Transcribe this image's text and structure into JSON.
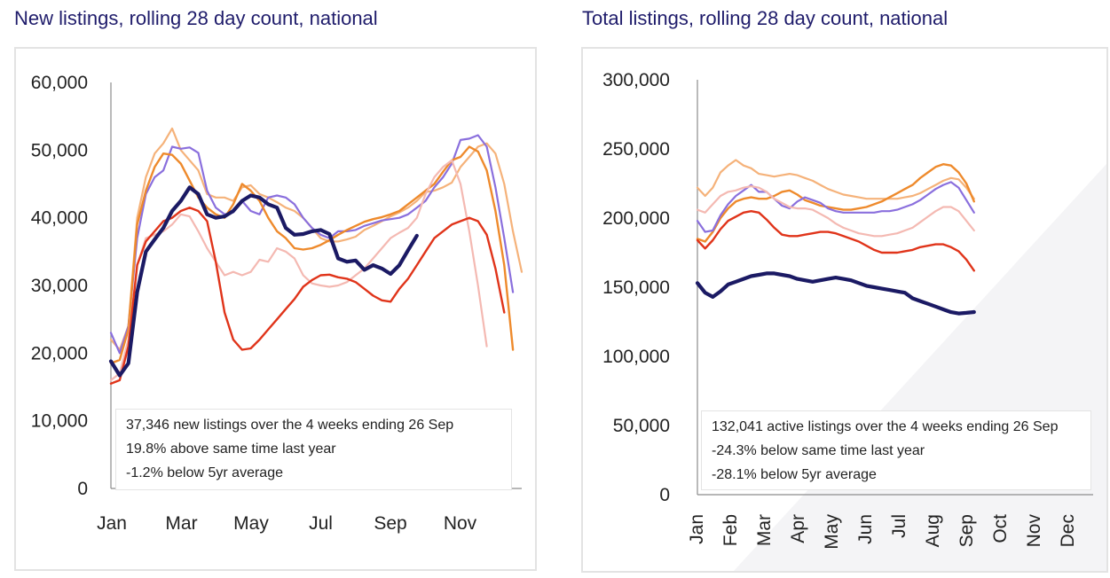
{
  "chart_data": [
    {
      "type": "line",
      "title": "New listings, rolling 28 day count, national",
      "ylim": [
        0,
        60000
      ],
      "yticks": [
        0,
        10000,
        20000,
        30000,
        40000,
        50000,
        60000
      ],
      "ytick_labels": [
        "0",
        "10,000",
        "20,000",
        "30,000",
        "40,000",
        "50,000",
        "60,000"
      ],
      "xticks": [
        0,
        8,
        16,
        24,
        32,
        40
      ],
      "xtick_labels": [
        "Jan",
        "Mar",
        "May",
        "Jul",
        "Sep",
        "Nov"
      ],
      "x_max": 47,
      "annotation": [
        "37,346 new listings over the 4 weeks ending 26 Sep",
        "19.8% above same time last year",
        "-1.2% below 5yr average"
      ],
      "series": [
        {
          "name": "series-light-orange",
          "color": "#f5b27a",
          "width": 2.2,
          "values": [
            22000,
            20500,
            24000,
            40000,
            46000,
            49500,
            51000,
            53200,
            50000,
            48500,
            47000,
            43500,
            43000,
            43000,
            42500,
            44500,
            44800,
            43500,
            43000,
            42300,
            41500,
            41000,
            40000,
            38500,
            37000,
            36500,
            36500,
            36800,
            37200,
            38200,
            38800,
            39500,
            40200,
            40800,
            41500,
            42500,
            43800,
            44000,
            44500,
            45200,
            47500,
            49000,
            50500,
            51000,
            49500,
            45000,
            38000,
            32000
          ]
        },
        {
          "name": "series-purple",
          "color": "#8a6fdd",
          "width": 2.2,
          "values": [
            23000,
            20000,
            24000,
            37000,
            43500,
            46000,
            47000,
            50500,
            50200,
            50400,
            49600,
            44000,
            41500,
            40500,
            40800,
            42500,
            41000,
            40500,
            43000,
            43300,
            43000,
            42000,
            40000,
            38500,
            37500,
            37000,
            38000,
            38000,
            38200,
            38800,
            39200,
            39600,
            39800,
            40000,
            40500,
            41500,
            42500,
            44500,
            46000,
            48000,
            51500,
            51700,
            52200,
            50500,
            44500,
            37000,
            29000
          ]
        },
        {
          "name": "series-orange",
          "color": "#ee8a2c",
          "width": 2.4,
          "values": [
            18500,
            19000,
            23500,
            39000,
            44000,
            47500,
            49500,
            49300,
            48000,
            45500,
            43000,
            41500,
            40500,
            40000,
            42000,
            45000,
            44000,
            42500,
            40000,
            38000,
            37000,
            35500,
            35300,
            35500,
            36000,
            36700,
            37500,
            38200,
            38800,
            39400,
            39800,
            40100,
            40500,
            41000,
            42000,
            43000,
            44000,
            45000,
            46800,
            48500,
            49000,
            50500,
            49800,
            47000,
            41000,
            33000,
            20500
          ]
        },
        {
          "name": "series-pink",
          "color": "#f4b9b2",
          "width": 2.2,
          "values": [
            16000,
            17000,
            22000,
            33000,
            37000,
            37500,
            38000,
            39000,
            40500,
            40200,
            38000,
            35500,
            33500,
            31500,
            32000,
            31500,
            32000,
            33800,
            33500,
            35500,
            35000,
            34000,
            31500,
            30300,
            30000,
            29800,
            30000,
            30500,
            31500,
            32500,
            34000,
            35500,
            37000,
            37800,
            38500,
            40000,
            43500,
            46000,
            47500,
            48500,
            45000,
            38000,
            30000,
            21000
          ]
        },
        {
          "name": "series-red",
          "color": "#e0341a",
          "width": 2.4,
          "values": [
            15500,
            16000,
            21000,
            33000,
            36500,
            38000,
            39500,
            40000,
            41000,
            41500,
            41000,
            39500,
            33500,
            26000,
            22000,
            20500,
            20700,
            22000,
            23500,
            25000,
            26500,
            28000,
            29800,
            30800,
            31500,
            31600,
            31200,
            31000,
            30500,
            29500,
            28500,
            27800,
            27600,
            29500,
            31000,
            33000,
            35000,
            37000,
            38000,
            39000,
            39500,
            40000,
            39500,
            37500,
            32500,
            26000
          ]
        },
        {
          "name": "series-current",
          "color": "#1b1a64",
          "width": 4.2,
          "values": [
            18800,
            16700,
            18500,
            29000,
            35000,
            36800,
            38500,
            41000,
            42500,
            44500,
            43500,
            40500,
            40000,
            40200,
            41000,
            42500,
            43300,
            43000,
            42000,
            41500,
            38500,
            37500,
            37600,
            38000,
            38200,
            37600,
            34000,
            33500,
            33700,
            32300,
            33000,
            32500,
            31700,
            33000,
            35200,
            37346
          ]
        }
      ]
    },
    {
      "type": "line",
      "title": "Total listings, rolling 28 day count, national",
      "ylim": [
        0,
        300000
      ],
      "yticks": [
        0,
        50000,
        100000,
        150000,
        200000,
        250000,
        300000
      ],
      "ytick_labels": [
        "0",
        "50,000",
        "100,000",
        "150,000",
        "200,000",
        "250,000",
        "300,000"
      ],
      "xticks": [
        0,
        4.3,
        8.6,
        12.9,
        17.2,
        21.5,
        25.8,
        30.1,
        34.4,
        38.7,
        43,
        47.3
      ],
      "xtick_labels": [
        "Jan",
        "Feb",
        "Mar",
        "Apr",
        "May",
        "Jun",
        "Jul",
        "Aug",
        "Sep",
        "Oct",
        "Nov",
        "Dec"
      ],
      "x_max": 51.5,
      "annotation": [
        "132,041 active listings over the 4 weeks ending 26 Sep",
        "-24.3% below same time last year",
        "-28.1% below 5yr average"
      ],
      "series": [
        {
          "name": "series-light-orange",
          "color": "#f5b27a",
          "width": 2.2,
          "values": [
            222000,
            216000,
            222000,
            233000,
            238000,
            242000,
            238000,
            236000,
            232000,
            231000,
            230000,
            231000,
            232000,
            231000,
            229000,
            227000,
            224000,
            221000,
            219000,
            217000,
            216000,
            215000,
            214000,
            214000,
            214000,
            214000,
            214000,
            215000,
            216000,
            218000,
            221000,
            224000,
            227000,
            229000,
            228000,
            222000,
            214000
          ]
        },
        {
          "name": "series-orange",
          "color": "#ee8a2c",
          "width": 2.4,
          "values": [
            185000,
            183000,
            190000,
            200000,
            207000,
            212000,
            214000,
            215000,
            214000,
            214000,
            216000,
            219000,
            220000,
            217000,
            213000,
            211000,
            209000,
            208000,
            207000,
            206000,
            206000,
            207000,
            208000,
            210000,
            212000,
            215000,
            218000,
            221000,
            224000,
            229000,
            233000,
            237000,
            239000,
            238000,
            233000,
            225000,
            212000
          ]
        },
        {
          "name": "series-purple",
          "color": "#8a6fdd",
          "width": 2.2,
          "values": [
            198000,
            190000,
            191000,
            202000,
            210000,
            216000,
            220000,
            224000,
            219000,
            219000,
            214000,
            209000,
            207000,
            212000,
            215000,
            213000,
            211000,
            207000,
            205000,
            204000,
            204000,
            204000,
            204000,
            204000,
            205000,
            205000,
            206000,
            208000,
            210000,
            213000,
            217000,
            221000,
            224000,
            226000,
            222000,
            213000,
            204000
          ]
        },
        {
          "name": "series-pink",
          "color": "#f4b9b2",
          "width": 2.2,
          "values": [
            206000,
            204000,
            210000,
            216000,
            219000,
            220000,
            222000,
            223000,
            222000,
            219000,
            214000,
            211000,
            208000,
            207000,
            207000,
            206000,
            203000,
            200000,
            196000,
            193000,
            191000,
            189000,
            188000,
            187000,
            187000,
            188000,
            189000,
            191000,
            193000,
            197000,
            201000,
            205000,
            208000,
            208000,
            205000,
            198000,
            191000
          ]
        },
        {
          "name": "series-red",
          "color": "#e0341a",
          "width": 2.4,
          "values": [
            184000,
            178000,
            184000,
            192000,
            198000,
            201000,
            204000,
            205000,
            204000,
            199000,
            193000,
            188000,
            187000,
            187000,
            188000,
            189000,
            190000,
            190000,
            189000,
            187000,
            185000,
            183000,
            180000,
            177000,
            175000,
            175000,
            175000,
            176000,
            177000,
            179000,
            180000,
            181000,
            181000,
            179000,
            176000,
            170000,
            162000
          ]
        },
        {
          "name": "series-current",
          "color": "#1b1a64",
          "width": 4.2,
          "values": [
            153000,
            146000,
            143000,
            147000,
            152000,
            154000,
            156000,
            158000,
            159000,
            160000,
            160000,
            159000,
            158000,
            156000,
            155000,
            154000,
            155000,
            156000,
            157000,
            156000,
            155000,
            153000,
            151000,
            150000,
            149000,
            148000,
            147000,
            146000,
            142000,
            140000,
            138000,
            136000,
            134000,
            132000,
            131000,
            131500,
            132041
          ]
        }
      ]
    }
  ]
}
